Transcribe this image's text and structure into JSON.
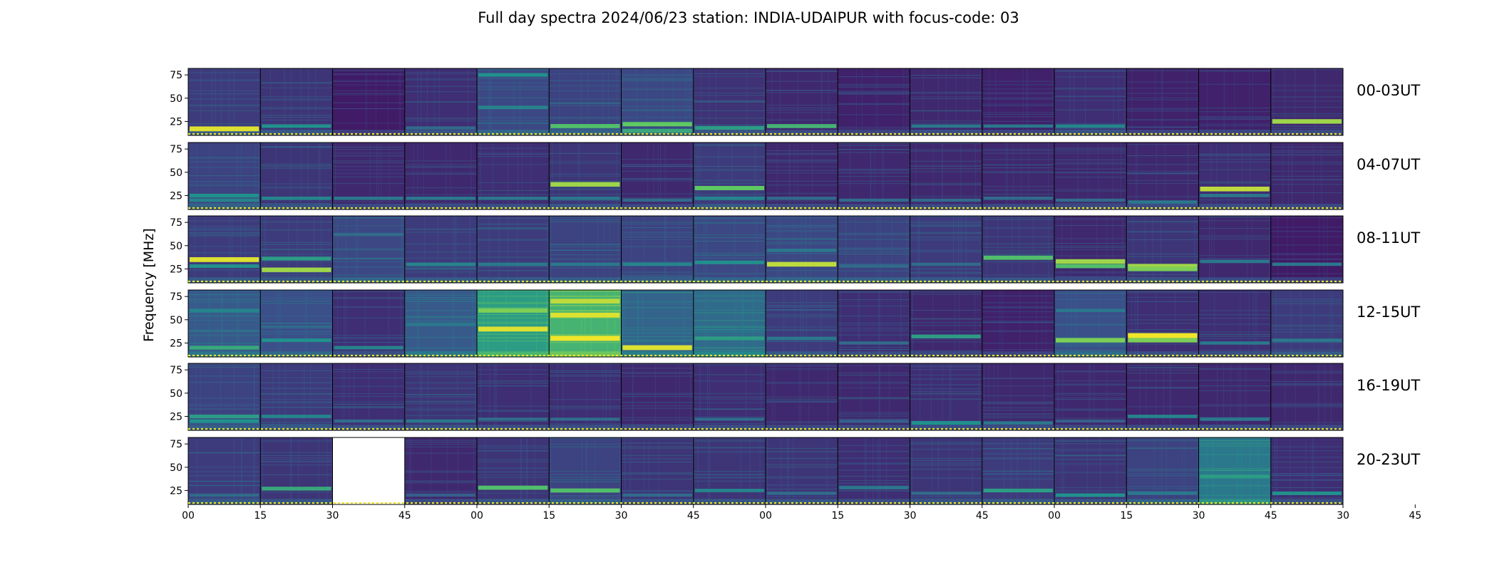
{
  "title": "Full day spectra 2024/06/23 station: INDIA-UDAIPUR with focus-code: 03",
  "chart_data": {
    "type": "heatmap",
    "ylabel": "Frequency [MHz]",
    "y_ticks": [
      "75",
      "50",
      "25"
    ],
    "x_ticks": [
      "00",
      "15",
      "30",
      "45",
      "00",
      "15",
      "30",
      "45",
      "00",
      "15",
      "30",
      "45",
      "00",
      "15",
      "30",
      "45",
      "30",
      "45"
    ],
    "rows": [
      {
        "label": "00-03UT",
        "panels": [
          {
            "base": 0.18,
            "bands": [
              [
                17,
                0.95
              ]
            ]
          },
          {
            "base": 0.16,
            "bands": [
              [
                20,
                0.5
              ]
            ]
          },
          {
            "base": 0.08,
            "bands": []
          },
          {
            "base": 0.14,
            "bands": [
              [
                18,
                0.35
              ]
            ]
          },
          {
            "base": 0.22,
            "bands": [
              [
                75,
                0.5
              ],
              [
                40,
                0.45
              ]
            ]
          },
          {
            "base": 0.2,
            "bands": [
              [
                20,
                0.7
              ]
            ]
          },
          {
            "base": 0.22,
            "bands": [
              [
                22,
                0.75
              ],
              [
                15,
                0.6
              ]
            ]
          },
          {
            "base": 0.15,
            "bands": [
              [
                18,
                0.55
              ]
            ]
          },
          {
            "base": 0.12,
            "bands": [
              [
                20,
                0.65
              ]
            ]
          },
          {
            "base": 0.1,
            "bands": []
          },
          {
            "base": 0.12,
            "bands": [
              [
                20,
                0.4
              ]
            ]
          },
          {
            "base": 0.1,
            "bands": [
              [
                20,
                0.4
              ]
            ]
          },
          {
            "base": 0.14,
            "bands": [
              [
                20,
                0.45
              ]
            ]
          },
          {
            "base": 0.1,
            "bands": []
          },
          {
            "base": 0.1,
            "bands": []
          },
          {
            "base": 0.12,
            "bands": [
              [
                25,
                0.85
              ]
            ]
          }
        ]
      },
      {
        "label": "04-07UT",
        "panels": [
          {
            "base": 0.2,
            "bands": [
              [
                25,
                0.5
              ],
              [
                20,
                0.45
              ]
            ]
          },
          {
            "base": 0.16,
            "bands": [
              [
                22,
                0.45
              ]
            ]
          },
          {
            "base": 0.12,
            "bands": [
              [
                22,
                0.4
              ]
            ]
          },
          {
            "base": 0.12,
            "bands": [
              [
                22,
                0.4
              ]
            ]
          },
          {
            "base": 0.14,
            "bands": [
              [
                22,
                0.4
              ]
            ]
          },
          {
            "base": 0.16,
            "bands": [
              [
                37,
                0.85
              ],
              [
                22,
                0.4
              ]
            ]
          },
          {
            "base": 0.12,
            "bands": [
              [
                20,
                0.35
              ]
            ]
          },
          {
            "base": 0.18,
            "bands": [
              [
                33,
                0.75
              ],
              [
                22,
                0.45
              ]
            ]
          },
          {
            "base": 0.12,
            "bands": [
              [
                22,
                0.35
              ]
            ]
          },
          {
            "base": 0.12,
            "bands": [
              [
                20,
                0.35
              ]
            ]
          },
          {
            "base": 0.12,
            "bands": [
              [
                20,
                0.35
              ]
            ]
          },
          {
            "base": 0.12,
            "bands": [
              [
                22,
                0.35
              ]
            ]
          },
          {
            "base": 0.12,
            "bands": [
              [
                20,
                0.35
              ]
            ]
          },
          {
            "base": 0.12,
            "bands": [
              [
                18,
                0.4
              ]
            ]
          },
          {
            "base": 0.14,
            "bands": [
              [
                32,
                0.9
              ],
              [
                25,
                0.4
              ]
            ]
          },
          {
            "base": 0.12,
            "bands": []
          }
        ]
      },
      {
        "label": "08-11UT",
        "panels": [
          {
            "base": 0.18,
            "bands": [
              [
                35,
                0.95
              ],
              [
                28,
                0.5
              ]
            ]
          },
          {
            "base": 0.18,
            "bands": [
              [
                36,
                0.55
              ],
              [
                24,
                0.85
              ]
            ]
          },
          {
            "base": 0.22,
            "bands": [
              [
                62,
                0.35
              ]
            ]
          },
          {
            "base": 0.18,
            "bands": [
              [
                30,
                0.45
              ]
            ]
          },
          {
            "base": 0.18,
            "bands": [
              [
                30,
                0.4
              ]
            ]
          },
          {
            "base": 0.2,
            "bands": [
              [
                30,
                0.4
              ]
            ]
          },
          {
            "base": 0.2,
            "bands": [
              [
                30,
                0.45
              ]
            ]
          },
          {
            "base": 0.22,
            "bands": [
              [
                32,
                0.5
              ]
            ]
          },
          {
            "base": 0.22,
            "bands": [
              [
                30,
                0.9
              ],
              [
                45,
                0.4
              ]
            ]
          },
          {
            "base": 0.2,
            "bands": [
              [
                28,
                0.35
              ]
            ]
          },
          {
            "base": 0.18,
            "bands": [
              [
                30,
                0.35
              ]
            ]
          },
          {
            "base": 0.16,
            "bands": [
              [
                37,
                0.7
              ]
            ]
          },
          {
            "base": 0.12,
            "bands": [
              [
                33,
                0.85
              ],
              [
                28,
                0.7
              ]
            ]
          },
          {
            "base": 0.16,
            "bands": [
              [
                28,
                0.85
              ],
              [
                25,
                0.8
              ]
            ]
          },
          {
            "base": 0.12,
            "bands": [
              [
                33,
                0.4
              ]
            ]
          },
          {
            "base": 0.08,
            "bands": [
              [
                30,
                0.4
              ]
            ]
          }
        ]
      },
      {
        "label": "12-15UT",
        "panels": [
          {
            "base": 0.28,
            "bands": [
              [
                20,
                0.6
              ],
              [
                60,
                0.45
              ]
            ]
          },
          {
            "base": 0.24,
            "bands": [
              [
                28,
                0.5
              ]
            ]
          },
          {
            "base": 0.14,
            "bands": [
              [
                20,
                0.45
              ]
            ]
          },
          {
            "base": 0.28,
            "bands": [
              [
                45,
                0.4
              ]
            ]
          },
          {
            "base": 0.55,
            "bands": [
              [
                40,
                0.95
              ],
              [
                60,
                0.8
              ]
            ]
          },
          {
            "base": 0.65,
            "bands": [
              [
                30,
                0.98
              ],
              [
                55,
                0.95
              ],
              [
                70,
                0.9
              ]
            ]
          },
          {
            "base": 0.32,
            "bands": [
              [
                20,
                0.95
              ]
            ]
          },
          {
            "base": 0.35,
            "bands": [
              [
                30,
                0.55
              ]
            ]
          },
          {
            "base": 0.18,
            "bands": [
              [
                30,
                0.4
              ]
            ]
          },
          {
            "base": 0.14,
            "bands": [
              [
                25,
                0.35
              ]
            ]
          },
          {
            "base": 0.12,
            "bands": [
              [
                32,
                0.55
              ]
            ]
          },
          {
            "base": 0.1,
            "bands": []
          },
          {
            "base": 0.24,
            "bands": [
              [
                28,
                0.8
              ],
              [
                60,
                0.4
              ]
            ]
          },
          {
            "base": 0.14,
            "bands": [
              [
                33,
                0.98
              ],
              [
                28,
                0.8
              ]
            ]
          },
          {
            "base": 0.14,
            "bands": [
              [
                25,
                0.4
              ]
            ]
          },
          {
            "base": 0.18,
            "bands": [
              [
                28,
                0.4
              ]
            ]
          }
        ]
      },
      {
        "label": "16-19UT",
        "panels": [
          {
            "base": 0.2,
            "bands": [
              [
                25,
                0.55
              ],
              [
                20,
                0.5
              ]
            ]
          },
          {
            "base": 0.18,
            "bands": [
              [
                25,
                0.45
              ]
            ]
          },
          {
            "base": 0.14,
            "bands": [
              [
                20,
                0.35
              ]
            ]
          },
          {
            "base": 0.16,
            "bands": [
              [
                20,
                0.4
              ]
            ]
          },
          {
            "base": 0.14,
            "bands": [
              [
                22,
                0.35
              ]
            ]
          },
          {
            "base": 0.14,
            "bands": [
              [
                22,
                0.35
              ]
            ]
          },
          {
            "base": 0.12,
            "bands": []
          },
          {
            "base": 0.14,
            "bands": [
              [
                22,
                0.35
              ]
            ]
          },
          {
            "base": 0.12,
            "bands": []
          },
          {
            "base": 0.12,
            "bands": [
              [
                20,
                0.3
              ]
            ]
          },
          {
            "base": 0.14,
            "bands": [
              [
                18,
                0.5
              ]
            ]
          },
          {
            "base": 0.12,
            "bands": [
              [
                18,
                0.4
              ]
            ]
          },
          {
            "base": 0.12,
            "bands": [
              [
                20,
                0.3
              ]
            ]
          },
          {
            "base": 0.12,
            "bands": [
              [
                25,
                0.45
              ]
            ]
          },
          {
            "base": 0.12,
            "bands": [
              [
                22,
                0.4
              ]
            ]
          },
          {
            "base": 0.12,
            "bands": []
          }
        ]
      },
      {
        "label": "20-23UT",
        "panels": [
          {
            "base": 0.18,
            "bands": [
              [
                20,
                0.35
              ]
            ]
          },
          {
            "base": 0.16,
            "bands": [
              [
                27,
                0.6
              ]
            ]
          },
          {
            "empty": true
          },
          {
            "base": 0.12,
            "bands": [
              [
                20,
                0.3
              ]
            ]
          },
          {
            "base": 0.16,
            "bands": [
              [
                28,
                0.7
              ]
            ]
          },
          {
            "base": 0.2,
            "bands": [
              [
                25,
                0.7
              ]
            ]
          },
          {
            "base": 0.16,
            "bands": [
              [
                20,
                0.35
              ]
            ]
          },
          {
            "base": 0.16,
            "bands": [
              [
                25,
                0.45
              ]
            ]
          },
          {
            "base": 0.16,
            "bands": [
              [
                22,
                0.35
              ]
            ]
          },
          {
            "base": 0.14,
            "bands": [
              [
                28,
                0.4
              ]
            ]
          },
          {
            "base": 0.16,
            "bands": [
              [
                22,
                0.35
              ]
            ]
          },
          {
            "base": 0.18,
            "bands": [
              [
                25,
                0.55
              ]
            ]
          },
          {
            "base": 0.16,
            "bands": [
              [
                20,
                0.5
              ]
            ]
          },
          {
            "base": 0.2,
            "bands": [
              [
                22,
                0.4
              ]
            ]
          },
          {
            "base": 0.4,
            "bands": [
              [
                40,
                0.55
              ]
            ]
          },
          {
            "base": 0.14,
            "bands": [
              [
                22,
                0.5
              ]
            ]
          }
        ]
      }
    ]
  }
}
